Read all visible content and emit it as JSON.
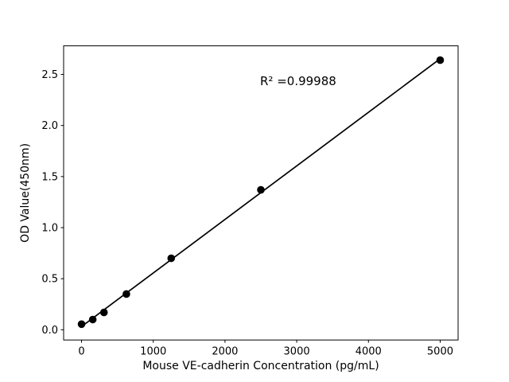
{
  "chart_data": {
    "type": "scatter",
    "title": "",
    "xlabel": "Mouse VE-cadherin Concentration (pg/mL)",
    "ylabel": "OD Value(450nm)",
    "x": [
      0,
      156.25,
      312.5,
      625,
      1250,
      2500,
      5000
    ],
    "y": [
      0.055,
      0.1,
      0.17,
      0.35,
      0.7,
      1.37,
      2.64
    ],
    "xlim": [
      -250,
      5250
    ],
    "ylim": [
      -0.1,
      2.78
    ],
    "xticks": [
      0,
      1000,
      2000,
      3000,
      4000,
      5000
    ],
    "xtick_labels": [
      "0",
      "1000",
      "2000",
      "3000",
      "4000",
      "5000"
    ],
    "yticks": [
      0.0,
      0.5,
      1.0,
      1.5,
      2.0,
      2.5
    ],
    "ytick_labels": [
      "0.0",
      "0.5",
      "1.0",
      "1.5",
      "2.0",
      "2.5"
    ],
    "grid": false,
    "legend": "none",
    "annotation": "R² =0.99988",
    "fit": {
      "type": "linear",
      "x_range": [
        0,
        5000
      ]
    },
    "marker_color": "#000000",
    "line_color": "#000000",
    "axis_color": "#000000",
    "background_color": "#ffffff"
  }
}
